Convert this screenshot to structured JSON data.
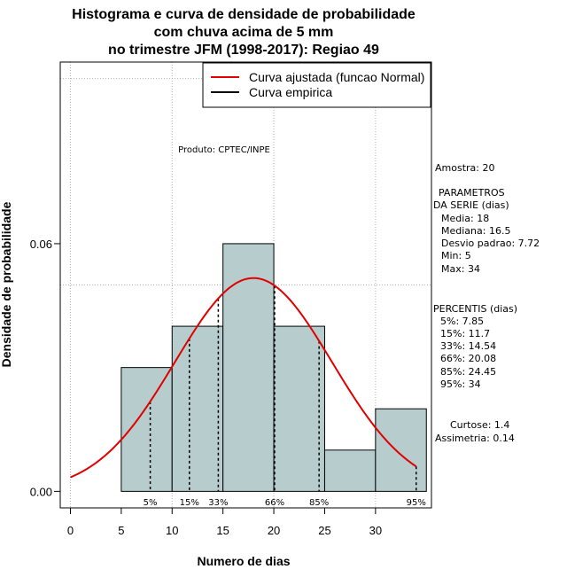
{
  "chart_data": {
    "type": "histogram",
    "title": [
      "Histograma e curva de densidade de probabilidade",
      "com chuva acima de 5 mm",
      "no trimestre JFM (1998-2017): Regiao 49"
    ],
    "xlabel": "Numero de dias",
    "ylabel": "Densidade de probabilidade",
    "xlim": [
      -1,
      35.5
    ],
    "ylim": [
      -0.004,
      0.104
    ],
    "x_ticks": [
      0,
      5,
      10,
      15,
      20,
      25,
      30
    ],
    "y_ticks": [
      0.0,
      0.06
    ],
    "y_tick_labels": [
      "0.00",
      "0.06"
    ],
    "grid_x": [
      0,
      10,
      20,
      30
    ],
    "grid_y": [
      0.05,
      0.1
    ],
    "bins": [
      {
        "start": 5,
        "end": 10,
        "density": 0.03
      },
      {
        "start": 10,
        "end": 15,
        "density": 0.04
      },
      {
        "start": 15,
        "end": 20,
        "density": 0.06
      },
      {
        "start": 20,
        "end": 25,
        "density": 0.04
      },
      {
        "start": 25,
        "end": 30,
        "density": 0.01
      },
      {
        "start": 30,
        "end": 35,
        "density": 0.02
      }
    ],
    "normal_fit": {
      "mean": 18,
      "sd": 7.72,
      "x_from": 0,
      "x_to": 34
    },
    "percentile_lines": [
      {
        "label": "5%",
        "x": 7.85
      },
      {
        "label": "15%",
        "x": 11.7
      },
      {
        "label": "33%",
        "x": 14.54
      },
      {
        "label": "66%",
        "x": 20.08
      },
      {
        "label": "85%",
        "x": 24.45
      },
      {
        "label": "95%",
        "x": 34
      }
    ],
    "legend": [
      {
        "label": "Curva ajustada (funcao Normal)",
        "color": "#e00000"
      },
      {
        "label": "Curva empirica",
        "color": "#000000"
      }
    ],
    "legend_position": "top-right",
    "colors": {
      "bar_fill": "#b7cccc",
      "curve": "#e00000",
      "grid": "#b0b0b0"
    },
    "product_label": "Produto: CPTEC/INPE"
  },
  "side_panel": {
    "amostra": "Amostra: 20",
    "params_title_1": "PARAMETROS",
    "params_title_2": "DA SERIE (dias)",
    "media": "Media: 18",
    "mediana": "Mediana: 16.5",
    "desvio": "Desvio padrao: 7.72",
    "min": "Min: 5",
    "max": "Max: 34",
    "percentis_title": "PERCENTIS (dias)",
    "p5": "5%: 7.85",
    "p15": "15%: 11.7",
    "p33": "33%: 14.54",
    "p66": "66%: 20.08",
    "p85": "85%: 24.45",
    "p95": "95%: 34",
    "curtose": "Curtose: 1.4",
    "assimetria": "Assimetria: 0.14"
  }
}
